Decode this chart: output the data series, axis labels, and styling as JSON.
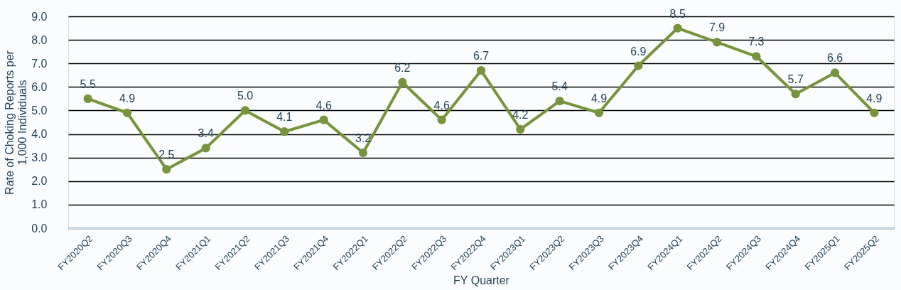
{
  "chart_data": {
    "type": "line",
    "xlabel": "FY Quarter",
    "ylabel": "Rate of Choking Reports per 1,000 Individuals",
    "categories": [
      "FY2020Q2",
      "FY2020Q3",
      "FY2020Q4",
      "FY2021Q1",
      "FY2021Q2",
      "FY2021Q3",
      "FY2021Q4",
      "FY2022Q1",
      "FY2022Q2",
      "FY2022Q3",
      "FY2022Q4",
      "FY2023Q1",
      "FY2023Q2",
      "FY2023Q3",
      "FY2023Q4",
      "FY2024Q1",
      "FY2024Q2",
      "FY2024Q3",
      "FY2024Q4",
      "FY2025Q1",
      "FY2025Q2"
    ],
    "series": [
      {
        "color": "#77933c",
        "values": [
          5.5,
          4.9,
          2.5,
          3.4,
          5.0,
          4.1,
          4.6,
          3.2,
          6.2,
          4.6,
          6.7,
          4.2,
          5.4,
          4.9,
          6.9,
          8.5,
          7.9,
          7.3,
          5.7,
          6.6,
          4.9
        ],
        "value_labels": [
          "5.5",
          "4.9",
          "2.5",
          "3.4",
          "5.0",
          "4.1",
          "4.6",
          "3.2",
          "6.2",
          "4.6",
          "6.7",
          "4.2",
          "5.4",
          "4.9",
          "6.9",
          "8.5",
          "7.9",
          "7.3",
          "5.7",
          "6.6",
          "4.9"
        ]
      }
    ],
    "ylim": [
      0,
      9
    ],
    "yticks": [
      {
        "value": 0,
        "label": "0.0"
      },
      {
        "value": 1,
        "label": "1.0"
      },
      {
        "value": 2,
        "label": "2.0"
      },
      {
        "value": 3,
        "label": "3.0"
      },
      {
        "value": 4,
        "label": "4.0"
      },
      {
        "value": 5,
        "label": "5.0"
      },
      {
        "value": 6,
        "label": "6.0"
      },
      {
        "value": 7,
        "label": "7.0"
      },
      {
        "value": 8,
        "label": "8.0"
      },
      {
        "value": 9,
        "label": "9.0"
      }
    ],
    "grid": "y",
    "marker": "circle",
    "line_style": "solid"
  }
}
